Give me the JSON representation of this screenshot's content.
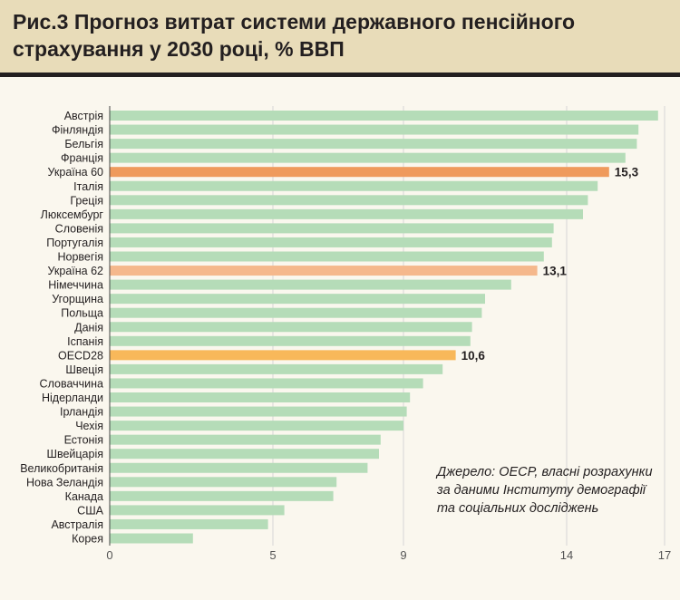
{
  "title": "Рис.3 Прогноз витрат системи державного пенсійного страхування у 2030 році, % ВВП",
  "source_lines": [
    "Джерело: OECP, власні розрахунки",
    "за даними Інституту демографії",
    "та соціальних досліджень"
  ],
  "colors": {
    "default_bar": "#b5dcb8",
    "ukraine60": "#ef9a5c",
    "ukraine62": "#f5b88c",
    "oecd28": "#f8b85a",
    "grid": "#d5d5d5",
    "text": "#231f20"
  },
  "chart_data": {
    "type": "bar",
    "orientation": "horizontal",
    "title": "Рис.3 Прогноз витрат системи державного пенсійного страхування у 2030 році, % ВВП",
    "xlabel": "",
    "ylabel": "",
    "xlim": [
      0,
      17
    ],
    "xticks": [
      0,
      5,
      9,
      14,
      17
    ],
    "xtick_labels": [
      "0",
      "5",
      "9",
      "14",
      "17"
    ],
    "grid": true,
    "categories": [
      "Австрія",
      "Фінляндія",
      "Бельгія",
      "Франція",
      "Україна 60",
      "Італія",
      "Греція",
      "Люксембург",
      "Словенія",
      "Португалія",
      "Норвегія",
      "Україна 62",
      "Німеччина",
      "Угорщина",
      "Польща",
      "Данія",
      "Іспанія",
      "OECD28",
      "Швеція",
      "Словаччина",
      "Нідерланди",
      "Ірландія",
      "Чехія",
      "Естонія",
      "Швейцарія",
      "Великобританія",
      "Нова Зеландія",
      "Канада",
      "США",
      "Австралія",
      "Корея"
    ],
    "values": [
      16.8,
      16.2,
      16.15,
      15.8,
      15.3,
      14.95,
      14.65,
      14.5,
      13.6,
      13.55,
      13.3,
      13.1,
      12.3,
      11.5,
      11.4,
      11.1,
      11.05,
      10.6,
      10.2,
      9.6,
      9.2,
      9.1,
      9.0,
      8.3,
      8.25,
      7.9,
      6.95,
      6.85,
      5.35,
      4.85,
      2.55
    ],
    "highlighted": [
      {
        "category": "Україна 60",
        "label": "15,3",
        "color": "#ef9a5c"
      },
      {
        "category": "Україна 62",
        "label": "13,1",
        "color": "#f5b88c"
      },
      {
        "category": "OECD28",
        "label": "10,6",
        "color": "#f8b85a"
      }
    ]
  }
}
